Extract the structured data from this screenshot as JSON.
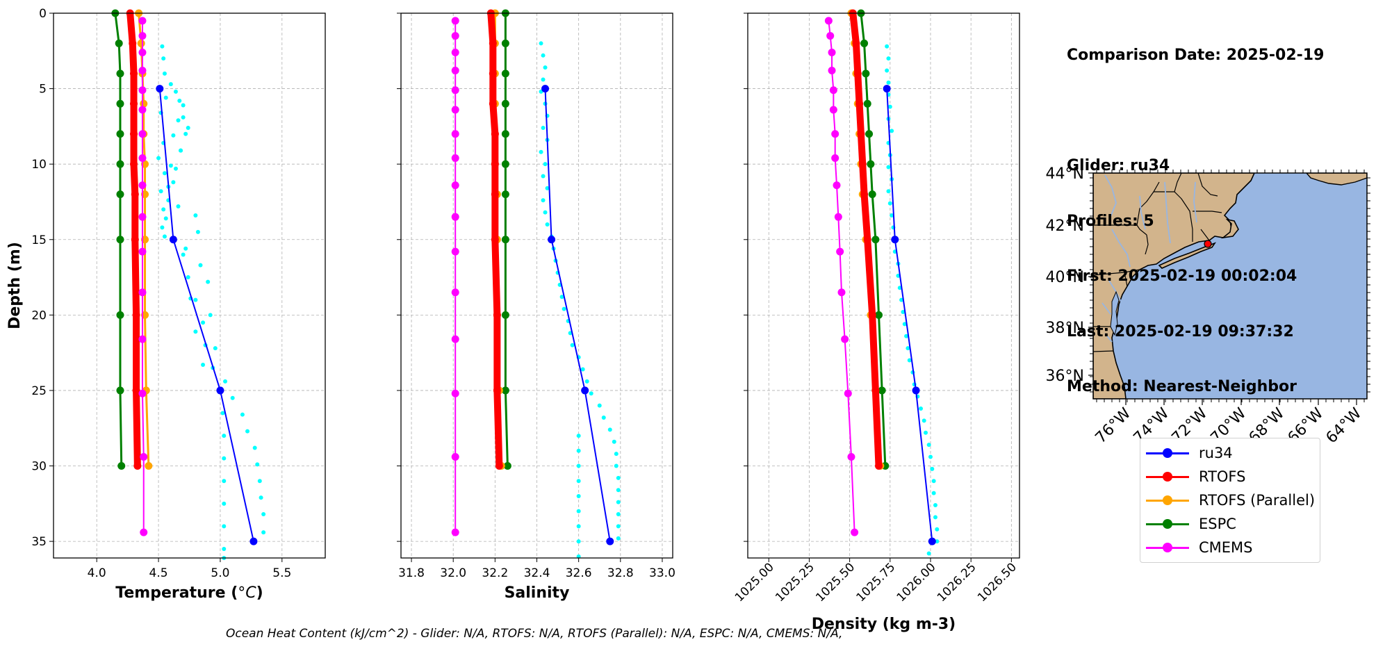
{
  "info": {
    "comparison_date": "Comparison Date: 2025-02-19",
    "glider": "Glider: ru34",
    "profiles": "Profiles: 5",
    "first": "First: 2025-02-19 00:02:04",
    "last": "Last: 2025-02-19 09:37:32",
    "method": "Method: Nearest-Neighbor"
  },
  "footer": "Ocean Heat Content (kJ/cm^2) - Glider: N/A,  RTOFS: N/A,  RTOFS (Parallel): N/A,  ESPC: N/A,  CMEMS: N/A,",
  "legend": [
    {
      "name": "ru34",
      "color": "#0000ff"
    },
    {
      "name": "RTOFS",
      "color": "#ff0000"
    },
    {
      "name": "RTOFS (Parallel)",
      "color": "#ffa500"
    },
    {
      "name": "ESPC",
      "color": "#008000"
    },
    {
      "name": "CMEMS",
      "color": "#ff00ff"
    }
  ],
  "chart_data": [
    {
      "type": "line",
      "xlabel_text": "Temperature (",
      "xlabel_unit": "°C",
      "ylabel": "Depth (m)",
      "xlim": [
        3.65,
        5.85
      ],
      "ylim": [
        36.1,
        0
      ],
      "xticks": [
        4.0,
        4.5,
        5.0,
        5.5
      ],
      "xtick_labels": [
        "4.0",
        "4.5",
        "5.0",
        "5.5"
      ],
      "yticks": [
        0,
        5,
        10,
        15,
        20,
        25,
        30,
        35
      ],
      "grid": true,
      "series": [
        {
          "name": "ESPC",
          "color": "#008000",
          "width": 3,
          "depth": [
            0,
            2,
            4,
            6,
            8,
            10,
            12,
            15,
            20,
            25,
            30
          ],
          "values": [
            4.15,
            4.18,
            4.19,
            4.19,
            4.19,
            4.19,
            4.19,
            4.19,
            4.19,
            4.19,
            4.2
          ]
        },
        {
          "name": "RTOFS (Parallel)",
          "color": "#ffa500",
          "width": 3,
          "depth": [
            0,
            2,
            4,
            6,
            8,
            10,
            12,
            15,
            20,
            25,
            30
          ],
          "values": [
            4.34,
            4.36,
            4.37,
            4.38,
            4.38,
            4.39,
            4.39,
            4.39,
            4.39,
            4.4,
            4.42
          ]
        },
        {
          "name": "RTOFS",
          "color": "#ff0000",
          "width": 10,
          "depth": [
            0,
            2,
            4,
            6,
            8,
            10,
            12,
            15,
            20,
            25,
            30
          ],
          "values": [
            4.27,
            4.29,
            4.3,
            4.3,
            4.3,
            4.3,
            4.31,
            4.31,
            4.32,
            4.32,
            4.33
          ]
        },
        {
          "name": "CMEMS",
          "color": "#ff00ff",
          "width": 2,
          "depth": [
            0.5,
            1.5,
            2.6,
            3.8,
            5.1,
            6.4,
            8.0,
            9.6,
            11.4,
            13.5,
            15.8,
            18.5,
            21.6,
            25.2,
            29.4,
            34.4
          ],
          "values": [
            4.37,
            4.37,
            4.37,
            4.37,
            4.37,
            4.37,
            4.37,
            4.37,
            4.37,
            4.37,
            4.37,
            4.37,
            4.37,
            4.37,
            4.38,
            4.38
          ]
        },
        {
          "name": "ru34",
          "color": "#0000ff",
          "width": 2,
          "depth": [
            5,
            15,
            25,
            35
          ],
          "values": [
            4.51,
            4.62,
            5.0,
            5.27
          ]
        }
      ],
      "scatter": {
        "color": "#00ffff",
        "depth": [
          2.2,
          3.0,
          4.0,
          4.7,
          5.2,
          5.6,
          6.1,
          6.6,
          7.1,
          7.6,
          8.1,
          8.6,
          9.1,
          9.6,
          10.1,
          10.6,
          11.2,
          11.8,
          12.4,
          13.0,
          13.6,
          14.2,
          14.8,
          5.8,
          6.9,
          8.0,
          9.1,
          10.3,
          11.5,
          12.8,
          13.4,
          14.5,
          15.6,
          16.7,
          17.8,
          18.9,
          20.0,
          21.1,
          22.2,
          23.3,
          24.4,
          25.5,
          26.6,
          27.7,
          28.8,
          29.9,
          31.0,
          32.1,
          33.2,
          34.4,
          16.0,
          17.5,
          19.0,
          20.5,
          22.0,
          23.5,
          25.0,
          26.5,
          28.0,
          29.5,
          31.0,
          32.5,
          34.0,
          35.5,
          36.1
        ],
        "values": [
          4.53,
          4.54,
          4.55,
          4.6,
          4.64,
          4.56,
          4.7,
          4.52,
          4.66,
          4.74,
          4.62,
          4.54,
          4.68,
          4.5,
          4.6,
          4.55,
          4.62,
          4.52,
          4.58,
          4.54,
          4.56,
          4.53,
          4.55,
          4.67,
          4.7,
          4.72,
          4.68,
          4.64,
          4.58,
          4.66,
          4.8,
          4.82,
          4.72,
          4.84,
          4.9,
          4.76,
          4.92,
          4.8,
          4.96,
          4.86,
          5.04,
          5.1,
          5.18,
          5.22,
          5.28,
          5.3,
          5.32,
          5.33,
          5.35,
          5.35,
          4.7,
          4.74,
          4.8,
          4.86,
          4.88,
          4.94,
          5.0,
          5.02,
          5.03,
          5.03,
          5.03,
          5.03,
          5.03,
          5.03,
          5.03
        ]
      }
    },
    {
      "type": "line",
      "xlabel": "Salinity",
      "xlim": [
        31.75,
        33.05
      ],
      "ylim": [
        36.1,
        0
      ],
      "xticks": [
        31.8,
        32.0,
        32.2,
        32.4,
        32.6,
        32.8,
        33.0
      ],
      "xtick_labels": [
        "31.8",
        "32.0",
        "32.2",
        "32.4",
        "32.6",
        "32.8",
        "33.0"
      ],
      "yticks": [
        0,
        5,
        10,
        15,
        20,
        25,
        30,
        35
      ],
      "grid": true,
      "series": [
        {
          "name": "ESPC",
          "color": "#008000",
          "width": 3,
          "depth": [
            0,
            2,
            4,
            6,
            8,
            10,
            12,
            15,
            20,
            25,
            30
          ],
          "values": [
            32.25,
            32.25,
            32.25,
            32.25,
            32.25,
            32.25,
            32.25,
            32.25,
            32.25,
            32.25,
            32.26
          ]
        },
        {
          "name": "RTOFS (Parallel)",
          "color": "#ffa500",
          "width": 3,
          "depth": [
            0,
            2,
            4,
            6,
            8,
            10,
            12,
            15,
            20,
            25,
            30
          ],
          "values": [
            32.2,
            32.2,
            32.2,
            32.2,
            32.2,
            32.2,
            32.21,
            32.21,
            32.21,
            32.22,
            32.23
          ]
        },
        {
          "name": "RTOFS",
          "color": "#ff0000",
          "width": 10,
          "depth": [
            0,
            2,
            4,
            6,
            8,
            10,
            12,
            15,
            20,
            25,
            30
          ],
          "values": [
            32.18,
            32.19,
            32.19,
            32.19,
            32.2,
            32.2,
            32.2,
            32.2,
            32.21,
            32.21,
            32.22
          ]
        },
        {
          "name": "CMEMS",
          "color": "#ff00ff",
          "width": 2,
          "depth": [
            0.5,
            1.5,
            2.6,
            3.8,
            5.1,
            6.4,
            8.0,
            9.6,
            11.4,
            13.5,
            15.8,
            18.5,
            21.6,
            25.2,
            29.4,
            34.4
          ],
          "values": [
            32.01,
            32.01,
            32.01,
            32.01,
            32.01,
            32.01,
            32.01,
            32.01,
            32.01,
            32.01,
            32.01,
            32.01,
            32.01,
            32.01,
            32.01,
            32.01
          ]
        },
        {
          "name": "ru34",
          "color": "#0000ff",
          "width": 2,
          "depth": [
            5,
            15,
            25,
            35
          ],
          "values": [
            32.44,
            32.47,
            32.63,
            32.75
          ]
        }
      ],
      "scatter": {
        "color": "#00ffff",
        "depth": [
          2.0,
          2.8,
          3.6,
          4.4,
          5.2,
          6.0,
          6.8,
          7.6,
          8.4,
          9.2,
          10.0,
          10.8,
          11.6,
          12.4,
          13.2,
          14.0,
          14.8,
          15.6,
          16.4,
          17.2,
          18.0,
          18.8,
          19.6,
          20.4,
          21.2,
          22.0,
          22.8,
          23.6,
          24.4,
          25.2,
          26.0,
          26.8,
          27.6,
          28.4,
          29.2,
          30.0,
          30.8,
          31.6,
          32.4,
          33.2,
          34.0,
          34.8,
          28.0,
          29.0,
          30.0,
          31.0,
          32.0,
          33.0,
          34.0,
          35.0,
          36.0
        ],
        "values": [
          32.42,
          32.43,
          32.44,
          32.43,
          32.42,
          32.44,
          32.45,
          32.43,
          32.45,
          32.42,
          32.44,
          32.43,
          32.45,
          32.43,
          32.44,
          32.45,
          32.47,
          32.48,
          32.49,
          32.5,
          32.51,
          32.52,
          32.53,
          32.55,
          32.56,
          32.57,
          32.6,
          32.62,
          32.64,
          32.66,
          32.7,
          32.72,
          32.75,
          32.77,
          32.78,
          32.78,
          32.79,
          32.79,
          32.79,
          32.79,
          32.79,
          32.79,
          32.6,
          32.6,
          32.6,
          32.6,
          32.6,
          32.6,
          32.6,
          32.6,
          32.6
        ]
      }
    },
    {
      "type": "line",
      "xlabel": "Density (kg m-3)",
      "xlim": [
        1024.87,
        1026.55
      ],
      "ylim": [
        36.1,
        0
      ],
      "xticks": [
        1025.0,
        1025.25,
        1025.5,
        1025.75,
        1026.0,
        1026.25,
        1026.5
      ],
      "xtick_labels": [
        "1025.00",
        "1025.25",
        "1025.50",
        "1025.75",
        "1026.00",
        "1026.25",
        "1026.50"
      ],
      "yticks": [
        0,
        5,
        10,
        15,
        20,
        25,
        30,
        35
      ],
      "grid": true,
      "series": [
        {
          "name": "ESPC",
          "color": "#008000",
          "width": 3,
          "depth": [
            0,
            2,
            4,
            6,
            8,
            10,
            12,
            15,
            20,
            25,
            30
          ],
          "values": [
            1025.57,
            1025.59,
            1025.6,
            1025.61,
            1025.62,
            1025.63,
            1025.64,
            1025.66,
            1025.68,
            1025.7,
            1025.72
          ]
        },
        {
          "name": "RTOFS (Parallel)",
          "color": "#ffa500",
          "width": 3,
          "depth": [
            0,
            2,
            4,
            6,
            8,
            10,
            12,
            15,
            20,
            25,
            30
          ],
          "values": [
            1025.51,
            1025.53,
            1025.54,
            1025.55,
            1025.56,
            1025.57,
            1025.58,
            1025.6,
            1025.63,
            1025.66,
            1025.69
          ]
        },
        {
          "name": "RTOFS",
          "color": "#ff0000",
          "width": 10,
          "depth": [
            0,
            2,
            4,
            6,
            8,
            10,
            12,
            15,
            20,
            25,
            30
          ],
          "values": [
            1025.52,
            1025.54,
            1025.55,
            1025.56,
            1025.57,
            1025.58,
            1025.59,
            1025.61,
            1025.64,
            1025.66,
            1025.68
          ]
        },
        {
          "name": "CMEMS",
          "color": "#ff00ff",
          "width": 2,
          "depth": [
            0.5,
            1.5,
            2.6,
            3.8,
            5.1,
            6.4,
            8.0,
            9.6,
            11.4,
            13.5,
            15.8,
            18.5,
            21.6,
            25.2,
            29.4,
            34.4
          ],
          "values": [
            1025.37,
            1025.38,
            1025.39,
            1025.39,
            1025.4,
            1025.4,
            1025.41,
            1025.41,
            1025.42,
            1025.43,
            1025.44,
            1025.45,
            1025.47,
            1025.49,
            1025.51,
            1025.53
          ]
        },
        {
          "name": "ru34",
          "color": "#0000ff",
          "width": 2,
          "depth": [
            5,
            15,
            25,
            35
          ],
          "values": [
            1025.73,
            1025.78,
            1025.91,
            1026.01
          ]
        }
      ],
      "scatter": {
        "color": "#00ffff",
        "depth": [
          2.2,
          3.0,
          3.8,
          4.6,
          5.4,
          6.2,
          7.0,
          7.8,
          8.6,
          9.4,
          10.2,
          11.0,
          11.8,
          12.6,
          13.4,
          14.2,
          15.0,
          15.8,
          16.6,
          17.4,
          18.2,
          19.0,
          19.8,
          20.6,
          21.4,
          22.2,
          23.0,
          23.8,
          24.6,
          25.4,
          26.2,
          27.0,
          27.8,
          28.6,
          29.4,
          30.2,
          31.0,
          31.8,
          32.6,
          33.4,
          34.2,
          35.0,
          35.8
        ],
        "values": [
          1025.73,
          1025.74,
          1025.73,
          1025.74,
          1025.74,
          1025.75,
          1025.74,
          1025.76,
          1025.74,
          1025.75,
          1025.74,
          1025.76,
          1025.74,
          1025.75,
          1025.76,
          1025.77,
          1025.79,
          1025.78,
          1025.8,
          1025.8,
          1025.81,
          1025.82,
          1025.83,
          1025.84,
          1025.85,
          1025.86,
          1025.87,
          1025.89,
          1025.9,
          1025.92,
          1025.94,
          1025.96,
          1025.97,
          1025.99,
          1026.0,
          1026.01,
          1026.02,
          1026.02,
          1026.03,
          1026.03,
          1026.04,
          1026.04,
          1025.99
        ]
      }
    }
  ],
  "map": {
    "lat_labels": [
      "44°N",
      "42°N",
      "40°N",
      "38°N",
      "36°N"
    ],
    "lon_labels": [
      "76°W",
      "74°W",
      "72°W",
      "70°W",
      "68°W",
      "66°W",
      "64°W"
    ],
    "land_color": "#d2b48c",
    "ocean_color": "#98b6e2"
  }
}
